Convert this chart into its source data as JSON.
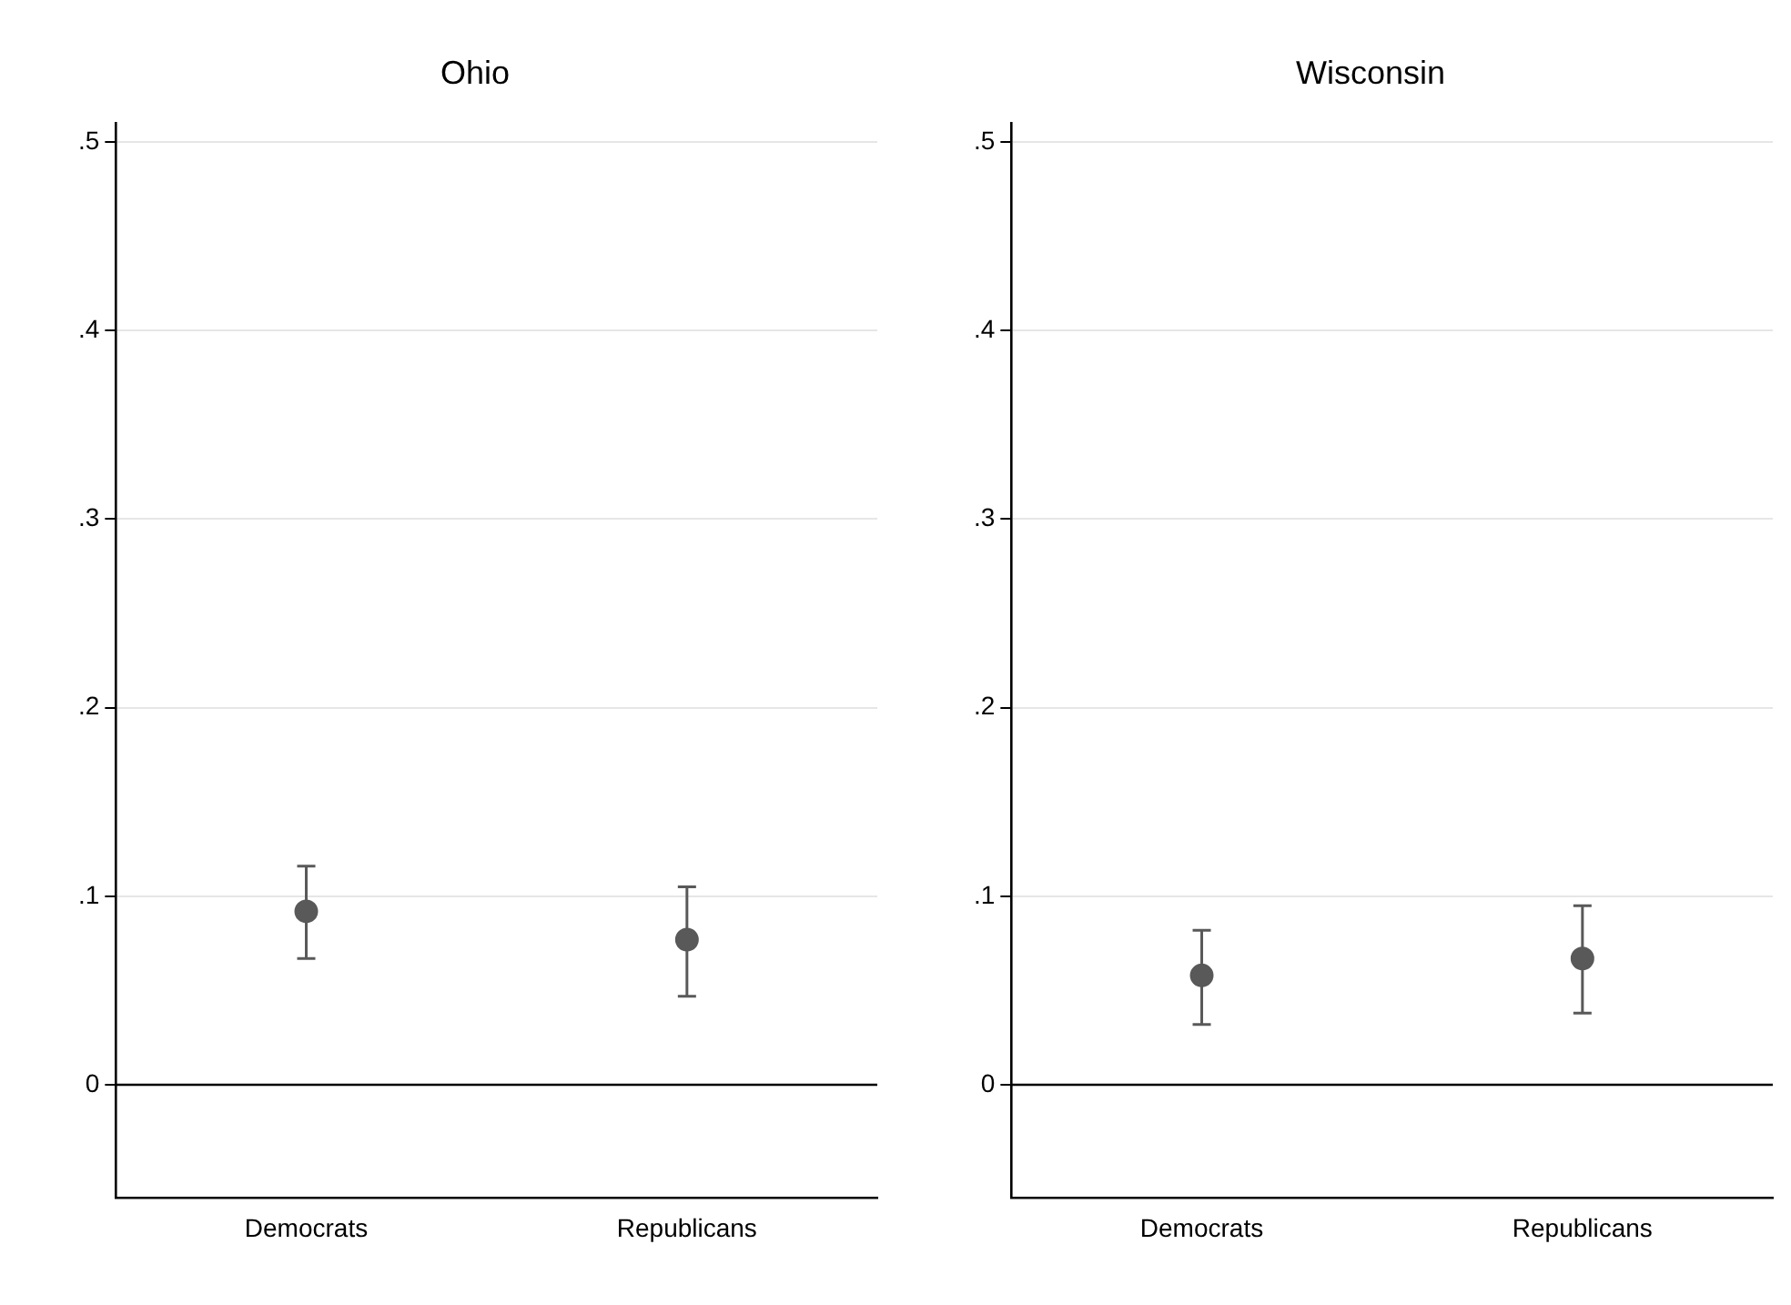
{
  "chart_data": [
    {
      "type": "scatter",
      "title": "Ohio",
      "categories": [
        "Democrats",
        "Republicans"
      ],
      "series": [
        {
          "color": "#595959",
          "values": [
            0.092,
            0.077
          ],
          "errors": [
            [
              0.067,
              0.116
            ],
            [
              0.047,
              0.105
            ]
          ]
        }
      ],
      "ylim": [
        -0.06,
        0.51
      ],
      "yticks": [
        0,
        {
          "value": 0.1,
          "label": ".1"
        },
        {
          "value": 0.2,
          "label": ".2"
        },
        {
          "value": 0.3,
          "label": ".3"
        },
        {
          "value": 0.4,
          "label": ".4"
        },
        {
          "value": 0.5,
          "label": ".5"
        }
      ],
      "grid": "y",
      "marker": "circle",
      "legend": false,
      "ref_lines": [
        {
          "axis": "y",
          "value": 0,
          "color": "#000000"
        }
      ]
    },
    {
      "type": "scatter",
      "title": "Wisconsin",
      "categories": [
        "Democrats",
        "Republicans"
      ],
      "series": [
        {
          "color": "#595959",
          "values": [
            0.058,
            0.067
          ],
          "errors": [
            [
              0.032,
              0.082
            ],
            [
              0.038,
              0.095
            ]
          ]
        }
      ],
      "ylim": [
        -0.06,
        0.51
      ],
      "yticks": [
        0,
        {
          "value": 0.1,
          "label": ".1"
        },
        {
          "value": 0.2,
          "label": ".2"
        },
        {
          "value": 0.3,
          "label": ".3"
        },
        {
          "value": 0.4,
          "label": ".4"
        },
        {
          "value": 0.5,
          "label": ".5"
        }
      ],
      "grid": "y",
      "marker": "circle",
      "legend": false,
      "ref_lines": [
        {
          "axis": "y",
          "value": 0,
          "color": "#000000"
        }
      ]
    }
  ]
}
